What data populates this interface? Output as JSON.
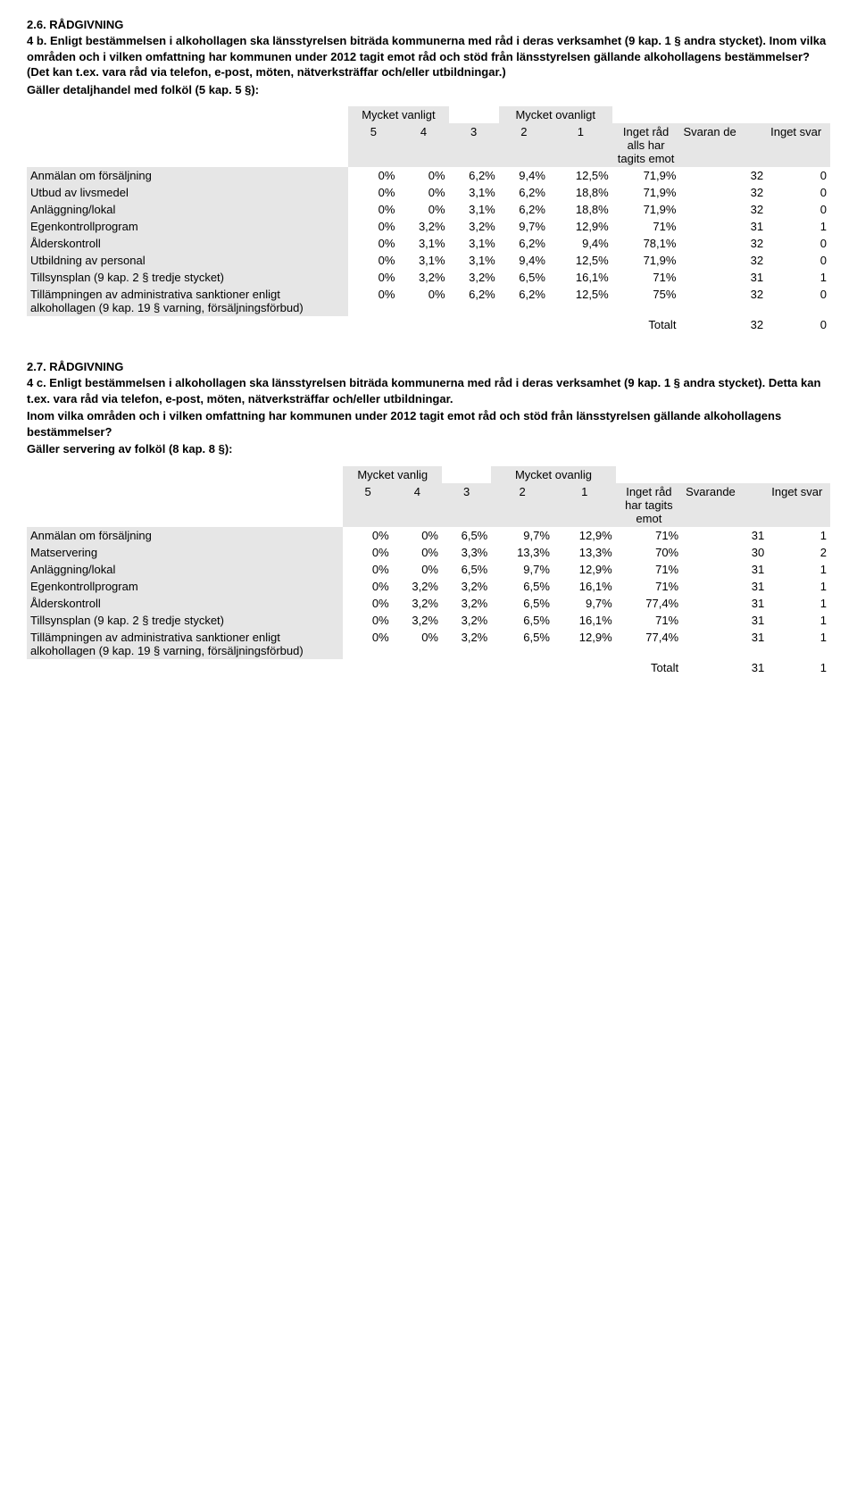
{
  "section1": {
    "heading": "2.6. RÅDGIVNING",
    "para1": "4 b. Enligt bestämmelsen i alkohollagen ska länsstyrelsen biträda kommunerna med råd i deras verksamhet (9 kap. 1 § andra stycket). Inom vilka områden och i vilken omfattning har kommunen under 2012 tagit emot råd och stöd från länsstyrelsen gällande alkohollagens bestämmelser? (Det kan t.ex. vara råd via telefon, e-post, möten, nätverksträffar och/eller utbildningar.)",
    "para2": "Gäller detaljhandel med folköl (5 kap. 5 §):",
    "topLeftLabel": "Mycket vanligt",
    "topRightLabel": "Mycket ovanligt",
    "hdr": {
      "c5": "5",
      "c4": "4",
      "c3": "3",
      "c2": "2",
      "c1": "1",
      "inget": "Inget råd alls har tagits emot",
      "svarande": "Svaran de",
      "nosvar": "Inget svar"
    },
    "rows": [
      {
        "label": "Anmälan om försäljning",
        "v": [
          "0%",
          "0%",
          "6,2%",
          "9,4%",
          "12,5%",
          "71,9%",
          "32",
          "0"
        ]
      },
      {
        "label": "Utbud av livsmedel",
        "v": [
          "0%",
          "0%",
          "3,1%",
          "6,2%",
          "18,8%",
          "71,9%",
          "32",
          "0"
        ]
      },
      {
        "label": "Anläggning/lokal",
        "v": [
          "0%",
          "0%",
          "3,1%",
          "6,2%",
          "18,8%",
          "71,9%",
          "32",
          "0"
        ]
      },
      {
        "label": "Egenkontrollprogram",
        "v": [
          "0%",
          "3,2%",
          "3,2%",
          "9,7%",
          "12,9%",
          "71%",
          "31",
          "1"
        ]
      },
      {
        "label": "Ålderskontroll",
        "v": [
          "0%",
          "3,1%",
          "3,1%",
          "6,2%",
          "9,4%",
          "78,1%",
          "32",
          "0"
        ]
      },
      {
        "label": "Utbildning av personal",
        "v": [
          "0%",
          "3,1%",
          "3,1%",
          "9,4%",
          "12,5%",
          "71,9%",
          "32",
          "0"
        ]
      },
      {
        "label": "Tillsynsplan (9 kap. 2 § tredje stycket)",
        "v": [
          "0%",
          "3,2%",
          "3,2%",
          "6,5%",
          "16,1%",
          "71%",
          "31",
          "1"
        ]
      },
      {
        "label": "Tillämpningen av administrativa sanktioner enligt alkohollagen (9 kap. 19 § varning, försäljningsförbud)",
        "v": [
          "0%",
          "0%",
          "6,2%",
          "6,2%",
          "12,5%",
          "75%",
          "32",
          "0"
        ]
      }
    ],
    "total": {
      "label": "Totalt",
      "a": "32",
      "b": "0"
    }
  },
  "section2": {
    "heading": "2.7. RÅDGIVNING",
    "para1": "4 c. Enligt bestämmelsen i alkohollagen ska länsstyrelsen biträda kommunerna med råd i deras verksamhet (9 kap. 1 § andra stycket). Detta kan t.ex. vara råd via telefon, e-post, möten, nätverksträffar och/eller utbildningar.",
    "para2": "Inom vilka områden och i vilken omfattning har kommunen under 2012 tagit emot råd och stöd från länsstyrelsen gällande alkohollagens bestämmelser?",
    "para3": "Gäller servering av folköl (8 kap. 8 §):",
    "topLeftLabel": "Mycket vanlig",
    "topRightLabel": "Mycket ovanlig",
    "hdr": {
      "c5": "5",
      "c4": "4",
      "c3": "3",
      "c2": "2",
      "c1": "1",
      "inget": "Inget råd har tagits emot",
      "svarande": "Svarande",
      "nosvar": "Inget svar"
    },
    "rows": [
      {
        "label": "Anmälan om försäljning",
        "v": [
          "0%",
          "0%",
          "6,5%",
          "9,7%",
          "12,9%",
          "71%",
          "31",
          "1"
        ]
      },
      {
        "label": "Matservering",
        "v": [
          "0%",
          "0%",
          "3,3%",
          "13,3%",
          "13,3%",
          "70%",
          "30",
          "2"
        ]
      },
      {
        "label": "Anläggning/lokal",
        "v": [
          "0%",
          "0%",
          "6,5%",
          "9,7%",
          "12,9%",
          "71%",
          "31",
          "1"
        ]
      },
      {
        "label": "Egenkontrollprogram",
        "v": [
          "0%",
          "3,2%",
          "3,2%",
          "6,5%",
          "16,1%",
          "71%",
          "31",
          "1"
        ]
      },
      {
        "label": "Ålderskontroll",
        "v": [
          "0%",
          "3,2%",
          "3,2%",
          "6,5%",
          "9,7%",
          "77,4%",
          "31",
          "1"
        ]
      },
      {
        "label": "Tillsynsplan (9 kap. 2 § tredje stycket)",
        "v": [
          "0%",
          "3,2%",
          "3,2%",
          "6,5%",
          "16,1%",
          "71%",
          "31",
          "1"
        ]
      },
      {
        "label": "Tillämpningen av administrativa sanktioner enligt alkohollagen (9 kap. 19 § varning, försäljningsförbud)",
        "v": [
          "0%",
          "0%",
          "3,2%",
          "6,5%",
          "12,9%",
          "77,4%",
          "31",
          "1"
        ]
      }
    ],
    "total": {
      "label": "Totalt",
      "a": "31",
      "b": "1"
    }
  }
}
